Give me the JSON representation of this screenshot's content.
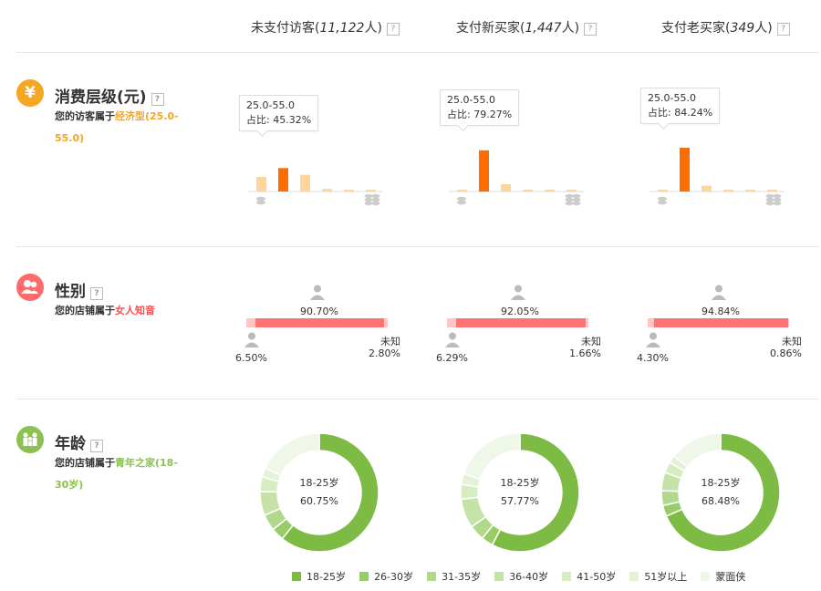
{
  "columns": [
    {
      "label": "未支付访客",
      "count": "11,122",
      "unit": "人"
    },
    {
      "label": "支付新买家",
      "count": "1,447",
      "unit": "人"
    },
    {
      "label": "支付老买家",
      "count": "349",
      "unit": "人"
    }
  ],
  "help_glyph": "?",
  "colors": {
    "consume_accent": "#f5a623",
    "consume_bar_main": "#ff6d00",
    "consume_bar_light": "#ffd699",
    "gender_accent": "#ff6b6b",
    "gender_bar": "#ff7373",
    "gender_bar_light": "#ffc5c5",
    "age_accent": "#8cc152",
    "age_donut": "#8cc152"
  },
  "sections": {
    "consume": {
      "title": "消费层级(元)",
      "desc_prefix": "您的访客属于",
      "desc_highlight": "经济型(25.0-55.0)",
      "icon": "yen-icon",
      "icon_glyph": "¥"
    },
    "gender": {
      "title": "性别",
      "desc_prefix": "您的店铺属于",
      "desc_highlight": "女人知音",
      "icon": "people-icon",
      "unknown_label": "未知"
    },
    "age": {
      "title": "年龄",
      "desc_prefix": "您的店铺属于",
      "desc_highlight": "青年之家(18-30岁)",
      "icon": "family-icon"
    }
  },
  "consume_charts": [
    {
      "tip_range": "25.0-55.0",
      "tip_label": "占比:",
      "tip_value": "45.32%",
      "values": [
        28,
        45,
        32,
        5,
        2,
        2
      ]
    },
    {
      "tip_range": "25.0-55.0",
      "tip_label": "占比:",
      "tip_value": "79.27%",
      "values": [
        3,
        79,
        14,
        3,
        1,
        1
      ]
    },
    {
      "tip_range": "25.0-55.0",
      "tip_label": "占比:",
      "tip_value": "84.24%",
      "values": [
        2,
        84,
        11,
        3,
        1,
        1
      ]
    }
  ],
  "gender_charts": [
    {
      "female": 90.7,
      "female_label": "90.70%",
      "male": 6.5,
      "male_label": "6.50%",
      "unknown": 2.8,
      "unknown_label": "2.80%"
    },
    {
      "female": 92.05,
      "female_label": "92.05%",
      "male": 6.29,
      "male_label": "6.29%",
      "unknown": 1.66,
      "unknown_label": "1.66%"
    },
    {
      "female": 94.84,
      "female_label": "94.84%",
      "male": 4.3,
      "male_label": "4.30%",
      "unknown": 0.86,
      "unknown_label": "0.86%"
    }
  ],
  "age_charts": [
    {
      "center_label": "18-25岁",
      "center_value": "60.75%",
      "values": [
        60.75,
        3.5,
        4.5,
        6.5,
        4,
        2.5,
        18.25
      ]
    },
    {
      "center_label": "18-25岁",
      "center_value": "57.77%",
      "values": [
        57.77,
        3.2,
        4.2,
        8,
        4,
        3,
        19.83
      ]
    },
    {
      "center_label": "18-25岁",
      "center_value": "68.48%",
      "values": [
        68.48,
        3,
        4,
        5,
        3,
        2,
        14.52
      ]
    }
  ],
  "age_legend": [
    {
      "label": "18-25岁",
      "color": "#7dbb45"
    },
    {
      "label": "26-30岁",
      "color": "#97cc68"
    },
    {
      "label": "31-35岁",
      "color": "#b0d98c"
    },
    {
      "label": "36-40岁",
      "color": "#c5e3a8"
    },
    {
      "label": "41-50岁",
      "color": "#d6ecc1"
    },
    {
      "label": "51岁以上",
      "color": "#e4f2d6"
    },
    {
      "label": "蒙面侠",
      "color": "#eff7e8"
    }
  ]
}
